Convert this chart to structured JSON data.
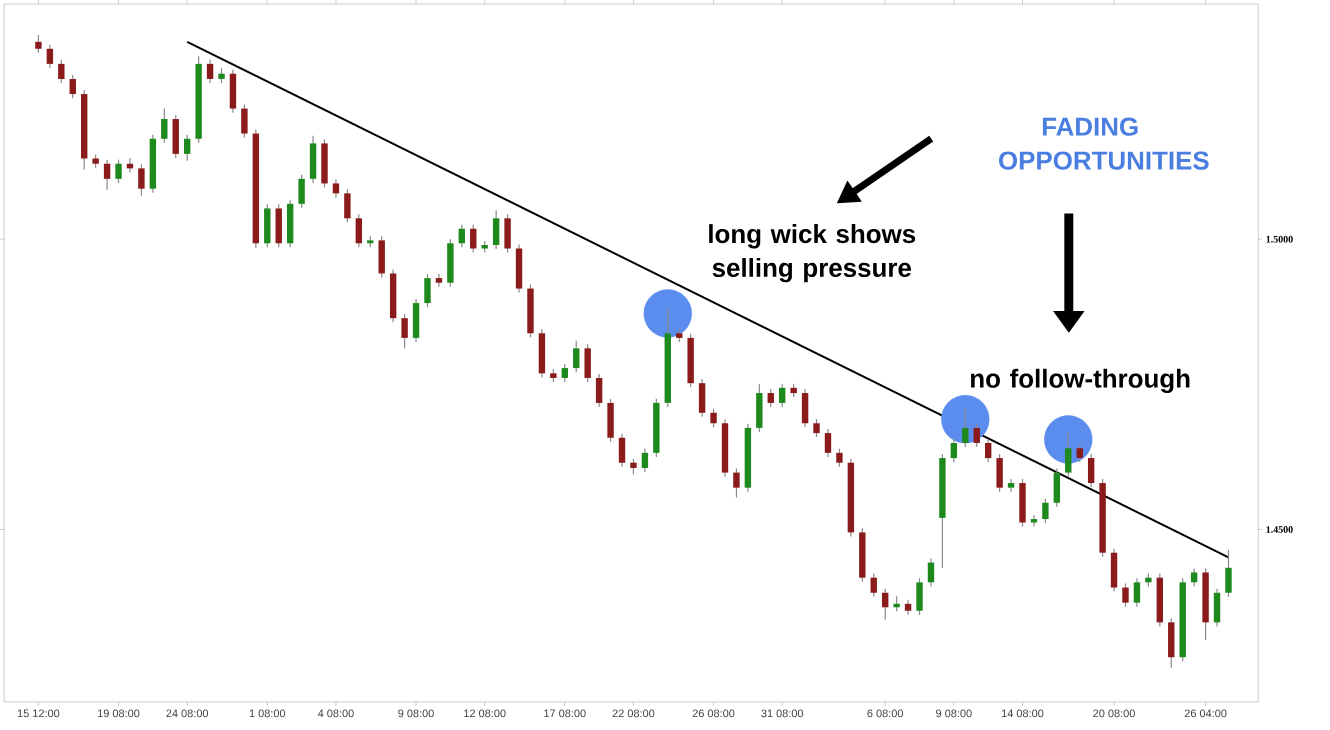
{
  "chart_data": {
    "type": "candlestick",
    "categories": [
      "15 12:00",
      null,
      null,
      null,
      null,
      null,
      null,
      "19 08:00",
      null,
      null,
      null,
      null,
      null,
      "24 08:00",
      null,
      null,
      null,
      null,
      null,
      null,
      "1 08:00",
      null,
      null,
      null,
      null,
      null,
      "4 08:00",
      null,
      null,
      null,
      null,
      null,
      null,
      "9 08:00",
      null,
      null,
      null,
      null,
      null,
      "12 08:00",
      null,
      null,
      null,
      null,
      null,
      null,
      "17 08:00",
      null,
      null,
      null,
      null,
      null,
      "22 08:00",
      null,
      null,
      null,
      null,
      null,
      null,
      "26 08:00",
      null,
      null,
      null,
      null,
      null,
      "31 08:00",
      null,
      null,
      null,
      null,
      null,
      null,
      null,
      null,
      "6 08:00",
      null,
      null,
      null,
      null,
      null,
      "9 08:00",
      null,
      null,
      null,
      null,
      null,
      "14 08:00",
      null,
      null,
      null,
      null,
      null,
      null,
      null,
      "20 08:00",
      null,
      null,
      null,
      null,
      null,
      null,
      null,
      "26 04:00",
      null,
      null
    ],
    "ohlc": [
      [
        1.534,
        1.5352,
        1.5321,
        1.5328
      ],
      [
        1.5328,
        1.5335,
        1.5295,
        1.5302
      ],
      [
        1.5302,
        1.5309,
        1.5269,
        1.5276
      ],
      [
        1.5276,
        1.5283,
        1.5243,
        1.525
      ],
      [
        1.525,
        1.5257,
        1.512,
        1.5139
      ],
      [
        1.5139,
        1.5146,
        1.5123,
        1.513
      ],
      [
        1.513,
        1.5137,
        1.5085,
        1.5104
      ],
      [
        1.5104,
        1.5137,
        1.5097,
        1.513
      ],
      [
        1.513,
        1.514,
        1.5115,
        1.5122
      ],
      [
        1.5122,
        1.5129,
        1.5075,
        1.5087
      ],
      [
        1.5087,
        1.518,
        1.508,
        1.5173
      ],
      [
        1.5173,
        1.5225,
        1.5166,
        1.5207
      ],
      [
        1.5207,
        1.5214,
        1.514,
        1.5147
      ],
      [
        1.5147,
        1.518,
        1.5135,
        1.5173
      ],
      [
        1.5173,
        1.5315,
        1.5166,
        1.5302
      ],
      [
        1.5302,
        1.5309,
        1.5269,
        1.5276
      ],
      [
        1.5276,
        1.5295,
        1.5269,
        1.5285
      ],
      [
        1.5285,
        1.5292,
        1.5218,
        1.5225
      ],
      [
        1.5225,
        1.5232,
        1.5175,
        1.5182
      ],
      [
        1.5182,
        1.5189,
        1.4985,
        1.4993
      ],
      [
        1.4993,
        1.506,
        1.4986,
        1.5053
      ],
      [
        1.5053,
        1.506,
        1.4986,
        1.4993
      ],
      [
        1.4993,
        1.5068,
        1.4986,
        1.5061
      ],
      [
        1.5061,
        1.5111,
        1.5054,
        1.5104
      ],
      [
        1.5104,
        1.5178,
        1.5097,
        1.5165
      ],
      [
        1.5165,
        1.5172,
        1.5089,
        1.5096
      ],
      [
        1.5096,
        1.5103,
        1.5072,
        1.5079
      ],
      [
        1.5079,
        1.5086,
        1.5029,
        1.5036
      ],
      [
        1.5036,
        1.5043,
        1.4986,
        1.4993
      ],
      [
        1.4993,
        1.5005,
        1.4986,
        1.4998
      ],
      [
        1.4998,
        1.5005,
        1.4934,
        1.4941
      ],
      [
        1.4941,
        1.4948,
        1.4857,
        1.4864
      ],
      [
        1.4864,
        1.4871,
        1.4812,
        1.483
      ],
      [
        1.483,
        1.4897,
        1.4823,
        1.489
      ],
      [
        1.489,
        1.494,
        1.4883,
        1.4933
      ],
      [
        1.4933,
        1.494,
        1.4918,
        1.4925
      ],
      [
        1.4925,
        1.5,
        1.4918,
        1.4993
      ],
      [
        1.4993,
        1.5025,
        1.4986,
        1.5018
      ],
      [
        1.5018,
        1.5025,
        1.4977,
        1.4984
      ],
      [
        1.4984,
        1.4997,
        1.4977,
        1.499
      ],
      [
        1.499,
        1.505,
        1.4983,
        1.5036
      ],
      [
        1.5036,
        1.5043,
        1.4977,
        1.4984
      ],
      [
        1.4984,
        1.4991,
        1.4908,
        1.4915
      ],
      [
        1.4915,
        1.4922,
        1.4831,
        1.4838
      ],
      [
        1.4838,
        1.4845,
        1.4762,
        1.4769
      ],
      [
        1.4769,
        1.4776,
        1.4754,
        1.4761
      ],
      [
        1.4761,
        1.4785,
        1.4754,
        1.4778
      ],
      [
        1.4778,
        1.4825,
        1.4771,
        1.4812
      ],
      [
        1.4812,
        1.4819,
        1.4754,
        1.4761
      ],
      [
        1.4761,
        1.4768,
        1.4711,
        1.4718
      ],
      [
        1.4718,
        1.4725,
        1.4651,
        1.4658
      ],
      [
        1.4658,
        1.4665,
        1.4608,
        1.4615
      ],
      [
        1.4615,
        1.4622,
        1.4595,
        1.4606
      ],
      [
        1.4606,
        1.4639,
        1.4599,
        1.4632
      ],
      [
        1.4632,
        1.4725,
        1.4625,
        1.4718
      ],
      [
        1.4718,
        1.488,
        1.4711,
        1.4838
      ],
      [
        1.4838,
        1.4845,
        1.4823,
        1.483
      ],
      [
        1.483,
        1.4837,
        1.4745,
        1.4752
      ],
      [
        1.4752,
        1.4759,
        1.4694,
        1.4701
      ],
      [
        1.4701,
        1.4708,
        1.4676,
        1.4683
      ],
      [
        1.4683,
        1.469,
        1.4591,
        1.4598
      ],
      [
        1.4598,
        1.4605,
        1.4555,
        1.4572
      ],
      [
        1.4572,
        1.4682,
        1.4565,
        1.4675
      ],
      [
        1.4675,
        1.475,
        1.4668,
        1.4735
      ],
      [
        1.4735,
        1.4742,
        1.4711,
        1.4718
      ],
      [
        1.4718,
        1.4751,
        1.4711,
        1.4744
      ],
      [
        1.4744,
        1.4751,
        1.4728,
        1.4735
      ],
      [
        1.4735,
        1.4742,
        1.4676,
        1.4683
      ],
      [
        1.4683,
        1.469,
        1.4659,
        1.4666
      ],
      [
        1.4666,
        1.4673,
        1.4625,
        1.4632
      ],
      [
        1.4632,
        1.4639,
        1.4608,
        1.4615
      ],
      [
        1.4615,
        1.4622,
        1.4488,
        1.4495
      ],
      [
        1.4495,
        1.4502,
        1.441,
        1.4417
      ],
      [
        1.4417,
        1.4424,
        1.4384,
        1.4391
      ],
      [
        1.4391,
        1.4398,
        1.4345,
        1.4366
      ],
      [
        1.4366,
        1.4385,
        1.4359,
        1.4372
      ],
      [
        1.4372,
        1.4379,
        1.4353,
        1.436
      ],
      [
        1.436,
        1.4416,
        1.4353,
        1.4409
      ],
      [
        1.4409,
        1.445,
        1.4402,
        1.4443
      ],
      [
        1.452,
        1.463,
        1.4434,
        1.4623
      ],
      [
        1.4623,
        1.4656,
        1.4616,
        1.4649
      ],
      [
        1.4649,
        1.4709,
        1.4642,
        1.4675
      ],
      [
        1.4675,
        1.4682,
        1.4642,
        1.4649
      ],
      [
        1.4649,
        1.4656,
        1.4616,
        1.4623
      ],
      [
        1.4623,
        1.463,
        1.4565,
        1.4572
      ],
      [
        1.4572,
        1.4587,
        1.4565,
        1.458
      ],
      [
        1.458,
        1.4587,
        1.4505,
        1.4512
      ],
      [
        1.4512,
        1.4525,
        1.4505,
        1.4518
      ],
      [
        1.4518,
        1.4553,
        1.4511,
        1.4546
      ],
      [
        1.4546,
        1.4605,
        1.4539,
        1.4598
      ],
      [
        1.4598,
        1.4668,
        1.4591,
        1.464
      ],
      [
        1.464,
        1.4647,
        1.4616,
        1.4623
      ],
      [
        1.4623,
        1.463,
        1.4573,
        1.458
      ],
      [
        1.458,
        1.4587,
        1.4453,
        1.446
      ],
      [
        1.446,
        1.4467,
        1.4393,
        1.44
      ],
      [
        1.44,
        1.4407,
        1.4367,
        1.4374
      ],
      [
        1.4374,
        1.4416,
        1.4367,
        1.4409
      ],
      [
        1.4409,
        1.4424,
        1.4402,
        1.4417
      ],
      [
        1.4417,
        1.4424,
        1.4333,
        1.434
      ],
      [
        1.434,
        1.4347,
        1.4262,
        1.428
      ],
      [
        1.428,
        1.4416,
        1.4273,
        1.4409
      ],
      [
        1.4409,
        1.4433,
        1.4402,
        1.4426
      ],
      [
        1.4426,
        1.4433,
        1.431,
        1.434
      ],
      [
        1.434,
        1.4398,
        1.4333,
        1.4391
      ],
      [
        1.4391,
        1.4465,
        1.4384,
        1.4434
      ]
    ],
    "series": [
      {
        "type": "line",
        "values": [
          null,
          null,
          null,
          null,
          null,
          null,
          null,
          null,
          null,
          null,
          null,
          null,
          null,
          1.534,
          null,
          null,
          null,
          null,
          null,
          null,
          null,
          null,
          null,
          null,
          null,
          null,
          null,
          null,
          null,
          null,
          null,
          null,
          null,
          null,
          null,
          null,
          null,
          null,
          null,
          null,
          null,
          null,
          null,
          null,
          null,
          null,
          null,
          null,
          null,
          null,
          null,
          null,
          null,
          null,
          null,
          null,
          null,
          null,
          null,
          null,
          null,
          null,
          null,
          null,
          null,
          null,
          null,
          null,
          null,
          null,
          null,
          null,
          null,
          null,
          null,
          null,
          null,
          null,
          null,
          null,
          null,
          null,
          null,
          null,
          null,
          null,
          null,
          null,
          null,
          null,
          null,
          null,
          null,
          null,
          null,
          null,
          null,
          null,
          null,
          null,
          null,
          null,
          null,
          null,
          1.4452
        ],
        "color": "#000000"
      },
      {
        "type": "scatter",
        "values": [
          null,
          null,
          null,
          null,
          null,
          null,
          null,
          null,
          null,
          null,
          null,
          null,
          null,
          null,
          null,
          null,
          null,
          null,
          null,
          null,
          null,
          null,
          null,
          null,
          null,
          null,
          null,
          null,
          null,
          null,
          null,
          null,
          null,
          null,
          null,
          null,
          null,
          null,
          null,
          null,
          null,
          null,
          null,
          null,
          null,
          null,
          null,
          null,
          null,
          null,
          null,
          null,
          null,
          null,
          null,
          1.4872,
          null,
          null,
          null,
          null,
          null,
          null,
          null,
          null,
          null,
          null,
          null,
          null,
          null,
          null,
          null,
          null,
          null,
          null,
          null,
          null,
          null,
          null,
          null,
          null,
          null,
          1.469,
          null,
          null,
          null,
          null,
          null,
          null,
          null,
          null,
          1.4655,
          null,
          null,
          null,
          null,
          null,
          null,
          null,
          null,
          null,
          null,
          null,
          null,
          null,
          null
        ],
        "color": "#5b8def"
      }
    ],
    "ylim": [
      1.4203,
      1.5405
    ],
    "yticks": [
      {
        "value": 1.45,
        "label": "1.4500"
      },
      {
        "value": 1.5,
        "label": "1.5000"
      }
    ],
    "annotations": [
      "FADING OPPORTUNITIES",
      "long wick shows selling pressure",
      "no follow-through"
    ]
  }
}
